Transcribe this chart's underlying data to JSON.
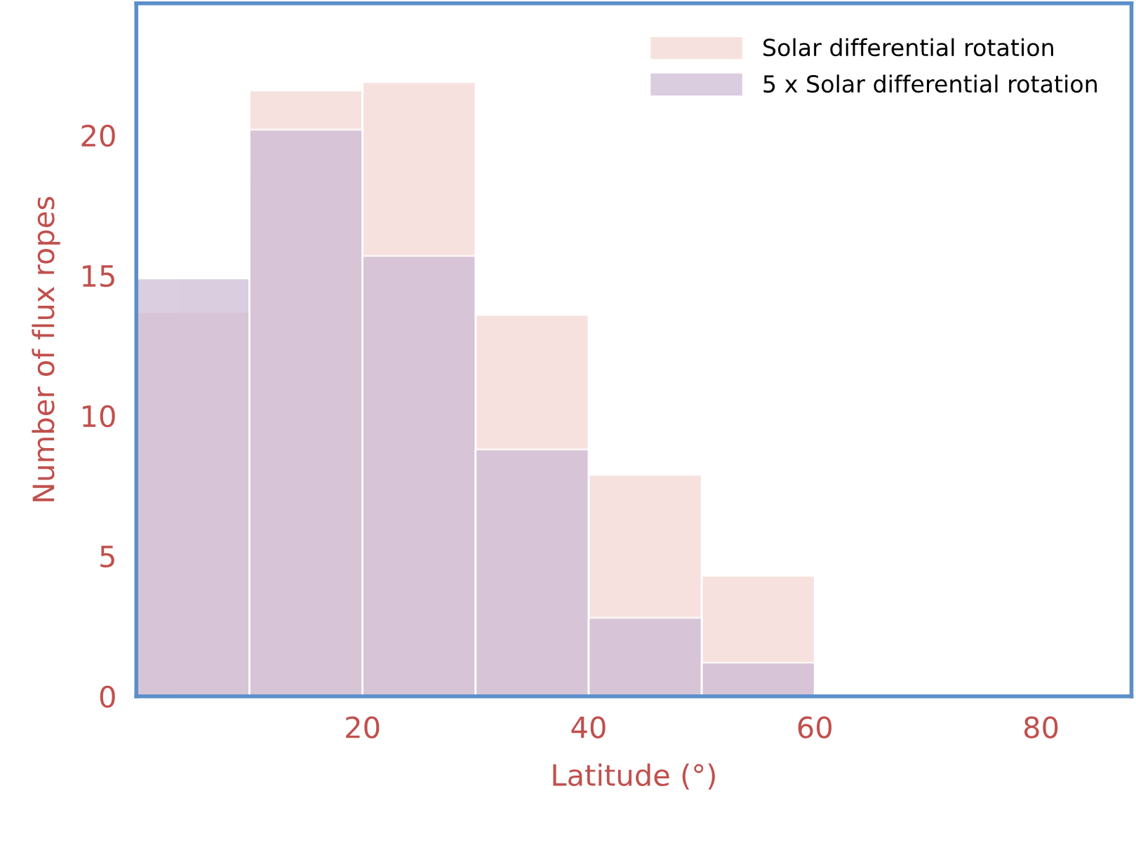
{
  "chart_data": {
    "type": "histogram",
    "xlabel": "Latitude (°)",
    "ylabel": "Number of flux ropes",
    "bins": [
      0,
      10,
      20,
      30,
      40,
      50,
      60
    ],
    "series": [
      {
        "name": "Solar differential rotation",
        "color": "#f6e1df",
        "values": [
          13.7,
          21.6,
          21.9,
          13.6,
          7.9,
          4.3
        ]
      },
      {
        "name": "5 x Solar differential rotation",
        "color": "#cbb9d3",
        "values": [
          14.9,
          20.2,
          15.7,
          8.8,
          2.8,
          1.2
        ]
      }
    ],
    "xlim": [
      0,
      88
    ],
    "ylim": [
      0,
      24.7
    ],
    "xticks": [
      20,
      40,
      60,
      80
    ],
    "yticks": [
      0,
      5,
      10,
      15,
      20
    ],
    "grid": false,
    "legend": "top right"
  }
}
